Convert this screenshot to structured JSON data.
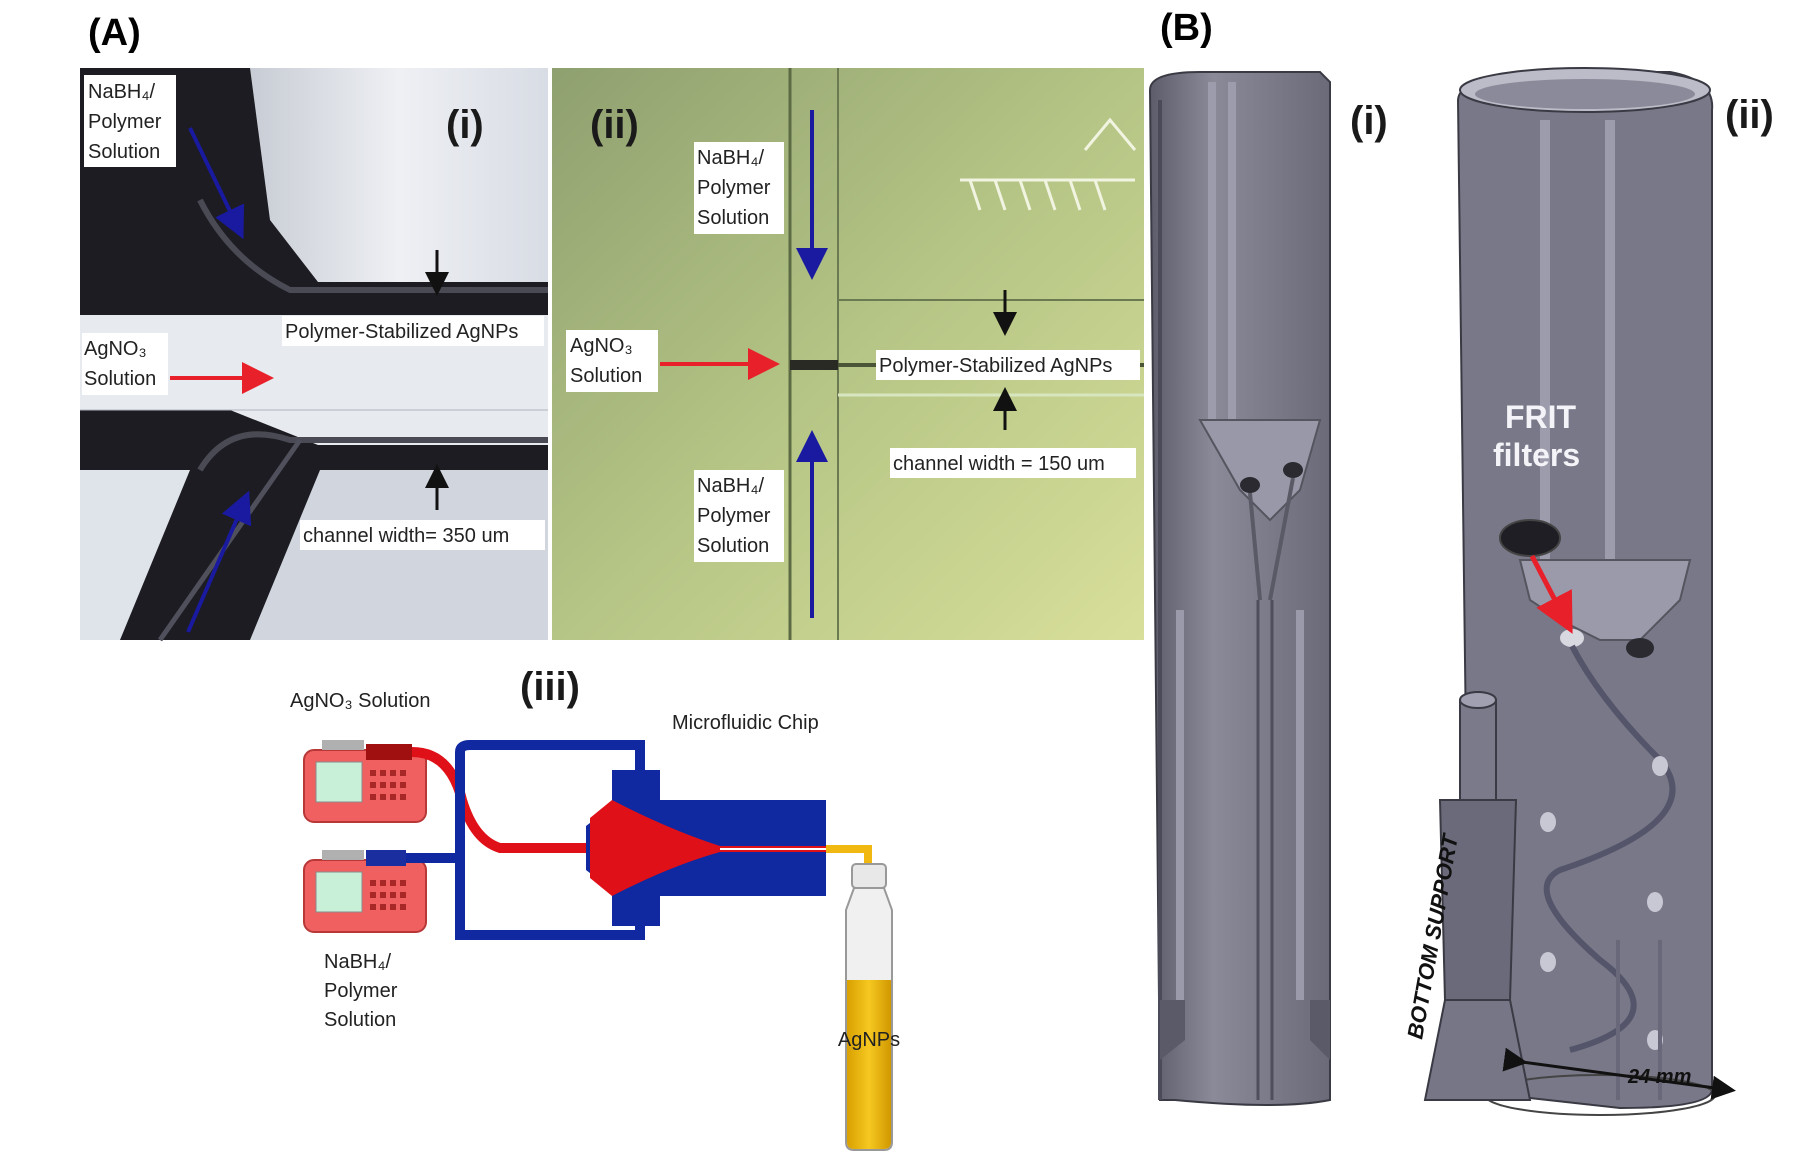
{
  "panel_a": {
    "letter": "(A)",
    "sub_i": {
      "numeral": "(i)",
      "top_inlet": [
        "NaBH₄/",
        "Polymer",
        "Solution"
      ],
      "side_inlet": [
        "AgNO₃",
        "Solution"
      ],
      "outlet": "Polymer-Stabilized AgNPs",
      "width": "channel width= 350 um"
    },
    "sub_ii": {
      "numeral": "(ii)",
      "top_inlet": [
        "NaBH₄/",
        "Polymer",
        "Solution"
      ],
      "bottom_inlet": [
        "NaBH₄/",
        "Polymer",
        "Solution"
      ],
      "side_inlet": [
        "AgNO₃",
        "Solution"
      ],
      "outlet": "Polymer-Stabilized AgNPs",
      "width": "channel width = 150 um"
    },
    "sub_iii": {
      "numeral": "(iii)",
      "pump1": "AgNO₃ Solution",
      "pump2": [
        "NaBH₄/",
        "Polymer",
        "Solution"
      ],
      "chip": "Microfluidic Chip",
      "vial": "AgNPs"
    }
  },
  "panel_b": {
    "letter": "(B)",
    "sub_i": {
      "numeral": "(i)"
    },
    "sub_ii": {
      "numeral": "(ii)",
      "frit": [
        "FRIT",
        "filters"
      ],
      "support": "BOTTOM SUPPORT",
      "dimension": "24 mm"
    }
  },
  "colors": {
    "red_arrow": "#e8202a",
    "blue_arrow": "#1a1aa0",
    "chip_blue": "#1028a0",
    "chip_red": "#e01018",
    "pump_red": "#f06060",
    "vial_yellow": "#f0b810",
    "model_gray": "#70707e"
  }
}
